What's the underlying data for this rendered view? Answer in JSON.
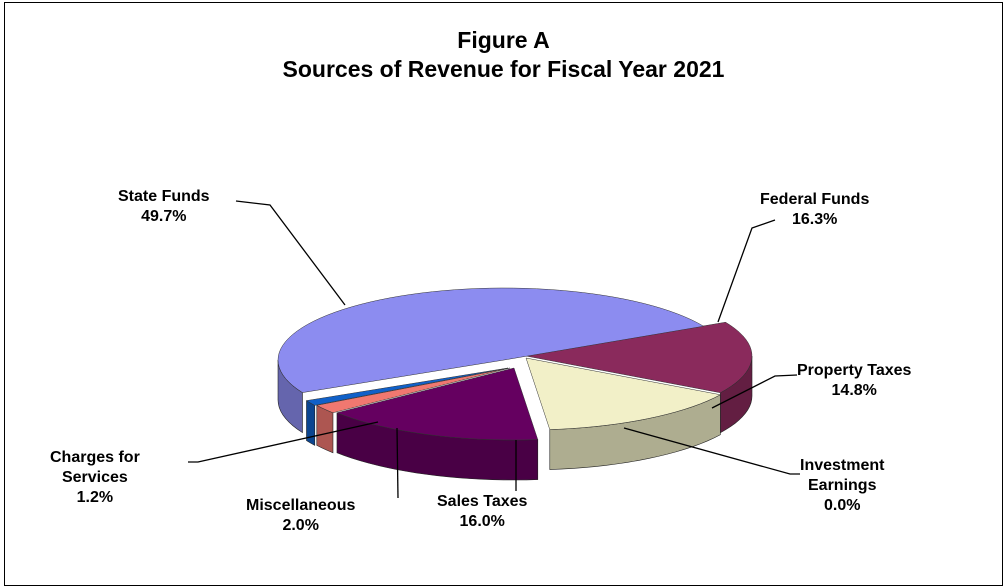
{
  "chart_data": {
    "type": "pie",
    "title_line1": "Figure A",
    "title_line2": "Sources of Revenue for Fiscal Year 2021",
    "slices": [
      {
        "name": "State Funds",
        "value": 49.7,
        "label_lines": [
          "State Funds",
          "49.7%"
        ],
        "color": "#8c8cf0"
      },
      {
        "name": "Federal Funds",
        "value": 16.3,
        "label_lines": [
          "Federal Funds",
          "16.3%"
        ],
        "color": "#8a2a5c"
      },
      {
        "name": "Property Taxes",
        "value": 14.8,
        "label_lines": [
          "Property Taxes",
          "14.8%"
        ],
        "color": "#f2f0c8"
      },
      {
        "name": "Investment Earnings",
        "value": 0.0,
        "label_lines": [
          "Investment",
          "Earnings",
          "0.0%"
        ],
        "color": "#3a3a8a"
      },
      {
        "name": "Sales Taxes",
        "value": 16.0,
        "label_lines": [
          "Sales Taxes",
          "16.0%"
        ],
        "color": "#650060"
      },
      {
        "name": "Miscellaneous",
        "value": 2.0,
        "label_lines": [
          "Miscellaneous",
          "2.0%"
        ],
        "color": "#f07870"
      },
      {
        "name": "Charges for Services",
        "value": 1.2,
        "label_lines": [
          "Charges for",
          "Services",
          "1.2%"
        ],
        "color": "#1060c8"
      }
    ],
    "legend": "none",
    "style": "3d-exploded-perspective"
  }
}
